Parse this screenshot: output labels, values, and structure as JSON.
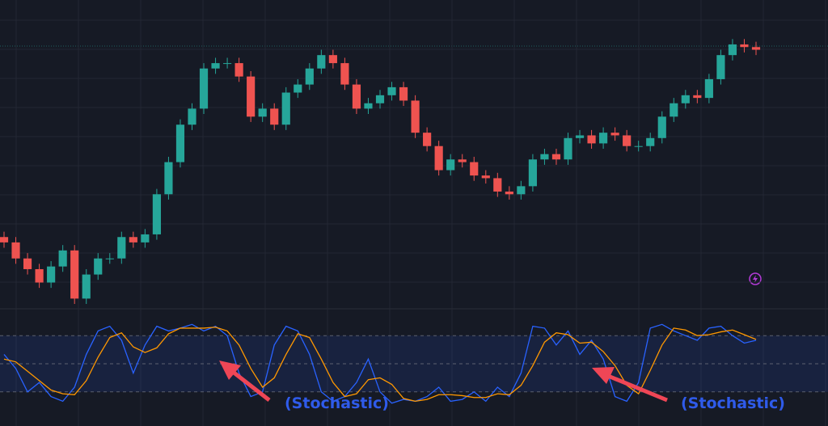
{
  "chart_data": [
    {
      "type": "candlestick",
      "open": [
        25,
        23,
        17,
        13,
        8,
        14,
        20,
        2,
        11,
        17,
        17,
        25,
        23,
        26,
        41,
        53,
        67,
        73,
        88,
        90,
        90,
        85,
        70,
        73,
        67,
        79,
        82,
        88,
        93,
        90,
        82,
        73,
        75,
        78,
        81,
        76,
        64,
        59,
        50,
        54,
        53,
        48,
        47,
        42,
        41,
        44,
        54,
        56,
        54,
        62,
        63,
        60,
        64,
        63,
        59,
        59,
        62,
        70,
        75,
        78,
        77,
        84,
        93,
        97,
        96
      ],
      "high": [
        27,
        25,
        19,
        15,
        16,
        22,
        22,
        13,
        19,
        19,
        27,
        27,
        28,
        43,
        55,
        69,
        75,
        90,
        92,
        92,
        92,
        87,
        75,
        75,
        81,
        84,
        90,
        95,
        95,
        92,
        84,
        77,
        80,
        83,
        83,
        78,
        66,
        61,
        56,
        56,
        55,
        50,
        49,
        44,
        46,
        56,
        58,
        58,
        64,
        65,
        65,
        66,
        66,
        65,
        61,
        64,
        72,
        77,
        80,
        80,
        86,
        95,
        99,
        99,
        98
      ],
      "low": [
        21,
        15,
        11,
        6,
        6,
        12,
        0,
        0,
        9,
        15,
        15,
        21,
        21,
        24,
        39,
        51,
        65,
        71,
        86,
        88,
        83,
        68,
        68,
        65,
        65,
        77,
        80,
        86,
        88,
        80,
        71,
        71,
        73,
        76,
        74,
        62,
        57,
        48,
        48,
        51,
        46,
        45,
        40,
        39,
        39,
        42,
        52,
        52,
        52,
        60,
        58,
        58,
        61,
        57,
        57,
        57,
        60,
        68,
        73,
        75,
        75,
        82,
        91,
        94,
        93
      ],
      "close": [
        23,
        17,
        13,
        8,
        14,
        20,
        2,
        11,
        17,
        17,
        25,
        23,
        26,
        41,
        53,
        67,
        73,
        88,
        90,
        90,
        85,
        70,
        73,
        67,
        79,
        82,
        88,
        93,
        90,
        82,
        73,
        75,
        78,
        81,
        76,
        64,
        59,
        50,
        54,
        53,
        48,
        47,
        42,
        41,
        44,
        54,
        56,
        54,
        62,
        63,
        60,
        64,
        63,
        59,
        59,
        62,
        70,
        75,
        78,
        77,
        84,
        93,
        97,
        96,
        95
      ],
      "up_color": "#26a69a",
      "down_color": "#ef5350",
      "ylim": [
        0,
        100
      ],
      "grid": true
    },
    {
      "type": "line",
      "series": [
        {
          "color": "#2962ff",
          "values": [
            60,
            45,
            20,
            30,
            15,
            10,
            25,
            60,
            85,
            90,
            75,
            40,
            70,
            90,
            85,
            88,
            92,
            85,
            90,
            80,
            40,
            15,
            20,
            70,
            90,
            85,
            60,
            20,
            10,
            15,
            30,
            55,
            20,
            8,
            12,
            10,
            15,
            25,
            10,
            12,
            20,
            10,
            25,
            15,
            40,
            90,
            88,
            70,
            85,
            60,
            75,
            55,
            15,
            10,
            30,
            88,
            92,
            85,
            80,
            75,
            88,
            90,
            80,
            72,
            75
          ]
        },
        {
          "color": "#ff9800",
          "values": [
            55,
            52,
            42,
            32,
            22,
            18,
            17,
            32,
            57,
            78,
            83,
            68,
            62,
            67,
            82,
            88,
            88,
            88,
            89,
            85,
            70,
            45,
            25,
            35,
            60,
            82,
            78,
            55,
            30,
            15,
            18,
            33,
            35,
            28,
            13,
            10,
            12,
            17,
            17,
            16,
            14,
            14,
            18,
            17,
            27,
            48,
            73,
            83,
            81,
            72,
            73,
            63,
            48,
            27,
            18,
            43,
            70,
            88,
            86,
            80,
            81,
            84,
            86,
            81,
            76
          ]
        }
      ],
      "ylim": [
        0,
        100
      ],
      "levels": [
        80,
        50,
        20
      ],
      "annotations": [
        "(Stochastic)",
        "(Stochastic)"
      ]
    }
  ]
}
